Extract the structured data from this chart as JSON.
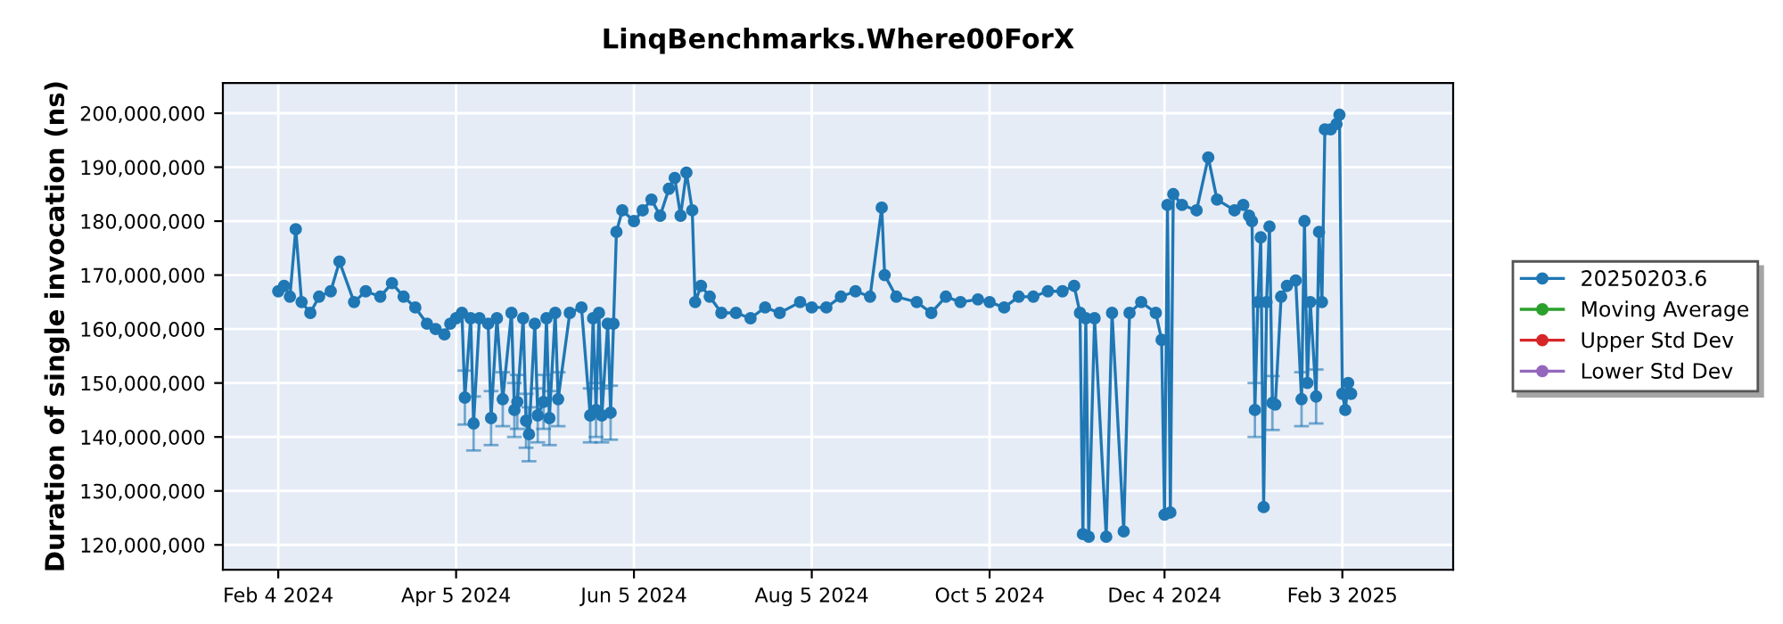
{
  "chart_data": {
    "type": "line",
    "title": "LinqBenchmarks.Where00ForX",
    "ylabel": "Duration of single invocation (ns)",
    "xlim": [
      "2024-01-16",
      "2025-03-13"
    ],
    "ylim": [
      115400000,
      205600000
    ],
    "xticks": [
      {
        "value": "2024-02-04",
        "label": "Feb 4 2024"
      },
      {
        "value": "2024-04-05",
        "label": "Apr 5 2024"
      },
      {
        "value": "2024-06-05",
        "label": "Jun 5 2024"
      },
      {
        "value": "2024-08-05",
        "label": "Aug 5 2024"
      },
      {
        "value": "2024-10-05",
        "label": "Oct 5 2024"
      },
      {
        "value": "2024-12-04",
        "label": "Dec 4 2024"
      },
      {
        "value": "2025-02-03",
        "label": "Feb 3 2025"
      }
    ],
    "yticks": [
      {
        "value": 120000000,
        "label": "120,000,000"
      },
      {
        "value": 130000000,
        "label": "130,000,000"
      },
      {
        "value": 140000000,
        "label": "140,000,000"
      },
      {
        "value": 150000000,
        "label": "150,000,000"
      },
      {
        "value": 160000000,
        "label": "160,000,000"
      },
      {
        "value": 170000000,
        "label": "170,000,000"
      },
      {
        "value": 180000000,
        "label": "180,000,000"
      },
      {
        "value": 190000000,
        "label": "190,000,000"
      },
      {
        "value": 200000000,
        "label": "200,000,000"
      }
    ],
    "grid": true,
    "legend": "right",
    "marker": "circle",
    "line_style": "solid",
    "series": [
      {
        "name": "20250203.6",
        "color": "#1f77b4",
        "x": [
          "2024-02-04",
          "2024-02-06",
          "2024-02-08",
          "2024-02-10",
          "2024-02-12",
          "2024-02-15",
          "2024-02-18",
          "2024-02-22",
          "2024-02-25",
          "2024-03-01",
          "2024-03-05",
          "2024-03-10",
          "2024-03-14",
          "2024-03-18",
          "2024-03-22",
          "2024-03-26",
          "2024-03-29",
          "2024-04-01",
          "2024-04-03",
          "2024-04-05",
          "2024-04-07",
          "2024-04-08",
          "2024-04-10",
          "2024-04-11",
          "2024-04-13",
          "2024-04-16",
          "2024-04-17",
          "2024-04-19",
          "2024-04-21",
          "2024-04-24",
          "2024-04-25",
          "2024-04-26",
          "2024-04-28",
          "2024-04-29",
          "2024-04-30",
          "2024-05-02",
          "2024-05-03",
          "2024-05-05",
          "2024-05-06",
          "2024-05-07",
          "2024-05-09",
          "2024-05-10",
          "2024-05-14",
          "2024-05-18",
          "2024-05-21",
          "2024-05-22",
          "2024-05-23",
          "2024-05-24",
          "2024-05-25",
          "2024-05-27",
          "2024-05-28",
          "2024-05-29",
          "2024-05-30",
          "2024-06-01",
          "2024-06-05",
          "2024-06-08",
          "2024-06-11",
          "2024-06-14",
          "2024-06-17",
          "2024-06-19",
          "2024-06-21",
          "2024-06-23",
          "2024-06-25",
          "2024-06-26",
          "2024-06-28",
          "2024-07-01",
          "2024-07-05",
          "2024-07-10",
          "2024-07-15",
          "2024-07-20",
          "2024-07-25",
          "2024-08-01",
          "2024-08-05",
          "2024-08-10",
          "2024-08-15",
          "2024-08-20",
          "2024-08-25",
          "2024-08-29",
          "2024-08-30",
          "2024-09-03",
          "2024-09-10",
          "2024-09-15",
          "2024-09-20",
          "2024-09-25",
          "2024-10-01",
          "2024-10-05",
          "2024-10-10",
          "2024-10-15",
          "2024-10-20",
          "2024-10-25",
          "2024-10-30",
          "2024-11-03",
          "2024-11-05",
          "2024-11-06",
          "2024-11-07",
          "2024-11-08",
          "2024-11-10",
          "2024-11-14",
          "2024-11-16",
          "2024-11-20",
          "2024-11-22",
          "2024-11-26",
          "2024-12-01",
          "2024-12-03",
          "2024-12-04",
          "2024-12-05",
          "2024-12-06",
          "2024-12-07",
          "2024-12-10",
          "2024-12-15",
          "2024-12-19",
          "2024-12-22",
          "2024-12-28",
          "2024-12-31",
          "2025-01-02",
          "2025-01-03",
          "2025-01-04",
          "2025-01-05",
          "2025-01-06",
          "2025-01-07",
          "2025-01-08",
          "2025-01-09",
          "2025-01-10",
          "2025-01-11",
          "2025-01-13",
          "2025-01-15",
          "2025-01-18",
          "2025-01-20",
          "2025-01-21",
          "2025-01-22",
          "2025-01-23",
          "2025-01-25",
          "2025-01-26",
          "2025-01-27",
          "2025-01-28",
          "2025-01-30",
          "2025-02-01",
          "2025-02-02",
          "2025-02-03",
          "2025-02-04",
          "2025-02-05",
          "2025-02-06"
        ],
        "values": [
          167000000,
          168000000,
          166000000,
          178500000,
          165000000,
          163000000,
          166000000,
          167000000,
          172500000,
          165000000,
          167000000,
          166000000,
          168500000,
          166000000,
          164000000,
          161000000,
          160000000,
          159000000,
          161000000,
          162000000,
          163000000,
          147300000,
          162000000,
          142500000,
          162000000,
          161000000,
          143500000,
          162000000,
          147000000,
          163000000,
          145000000,
          146500000,
          162000000,
          143000000,
          140500000,
          161000000,
          144000000,
          146500000,
          162000000,
          143500000,
          163000000,
          147000000,
          163000000,
          164000000,
          144000000,
          162000000,
          145000000,
          163000000,
          144000000,
          161000000,
          144500000,
          161000000,
          178000000,
          182000000,
          180000000,
          182000000,
          184000000,
          181000000,
          186000000,
          188000000,
          181000000,
          189000000,
          182000000,
          165000000,
          168000000,
          166000000,
          163000000,
          163000000,
          162000000,
          164000000,
          163000000,
          165000000,
          164000000,
          164000000,
          166000000,
          167000000,
          166000000,
          182500000,
          170000000,
          166000000,
          165000000,
          163000000,
          166000000,
          165000000,
          165500000,
          165000000,
          164000000,
          166000000,
          166000000,
          167000000,
          167000000,
          168000000,
          163000000,
          122000000,
          162000000,
          121500000,
          162000000,
          121500000,
          163000000,
          122500000,
          163000000,
          165000000,
          163000000,
          158000000,
          125600000,
          183000000,
          126000000,
          185000000,
          183000000,
          182000000,
          191800000,
          184000000,
          182000000,
          183000000,
          181000000,
          180000000,
          145000000,
          165000000,
          177000000,
          127000000,
          165000000,
          179000000,
          146300000,
          146000000,
          166000000,
          168000000,
          169000000,
          147000000,
          180000000,
          150000000,
          165000000,
          147500000,
          178000000,
          165000000,
          197000000,
          197000000,
          198000000,
          199700000,
          148000000,
          145000000,
          150000000,
          148000000
        ],
        "errors": [
          null,
          null,
          null,
          null,
          null,
          null,
          null,
          null,
          null,
          null,
          null,
          null,
          null,
          null,
          null,
          null,
          null,
          null,
          null,
          null,
          null,
          5000000,
          null,
          5000000,
          null,
          null,
          5000000,
          null,
          5000000,
          null,
          5000000,
          5000000,
          null,
          5000000,
          5000000,
          null,
          5000000,
          5000000,
          null,
          5000000,
          null,
          5000000,
          null,
          null,
          5000000,
          null,
          5000000,
          null,
          5000000,
          null,
          5000000,
          null,
          null,
          null,
          null,
          null,
          null,
          null,
          null,
          null,
          null,
          null,
          null,
          null,
          null,
          null,
          null,
          null,
          null,
          null,
          null,
          null,
          null,
          null,
          null,
          null,
          null,
          null,
          null,
          null,
          null,
          null,
          null,
          null,
          null,
          null,
          null,
          null,
          null,
          null,
          null,
          null,
          null,
          null,
          null,
          null,
          null,
          null,
          null,
          null,
          null,
          null,
          null,
          null,
          null,
          null,
          null,
          null,
          null,
          null,
          null,
          null,
          null,
          null,
          null,
          null,
          5000000,
          null,
          null,
          null,
          null,
          null,
          5000000,
          null,
          null,
          null,
          null,
          5000000,
          null,
          null,
          null,
          5000000,
          null,
          null,
          null,
          null,
          null,
          null,
          null,
          null,
          null,
          null
        ]
      },
      {
        "name": "Moving Average",
        "color": "#2ca02c"
      },
      {
        "name": "Upper Std Dev",
        "color": "#d62728"
      },
      {
        "name": "Lower Std Dev",
        "color": "#9467bd"
      }
    ]
  }
}
